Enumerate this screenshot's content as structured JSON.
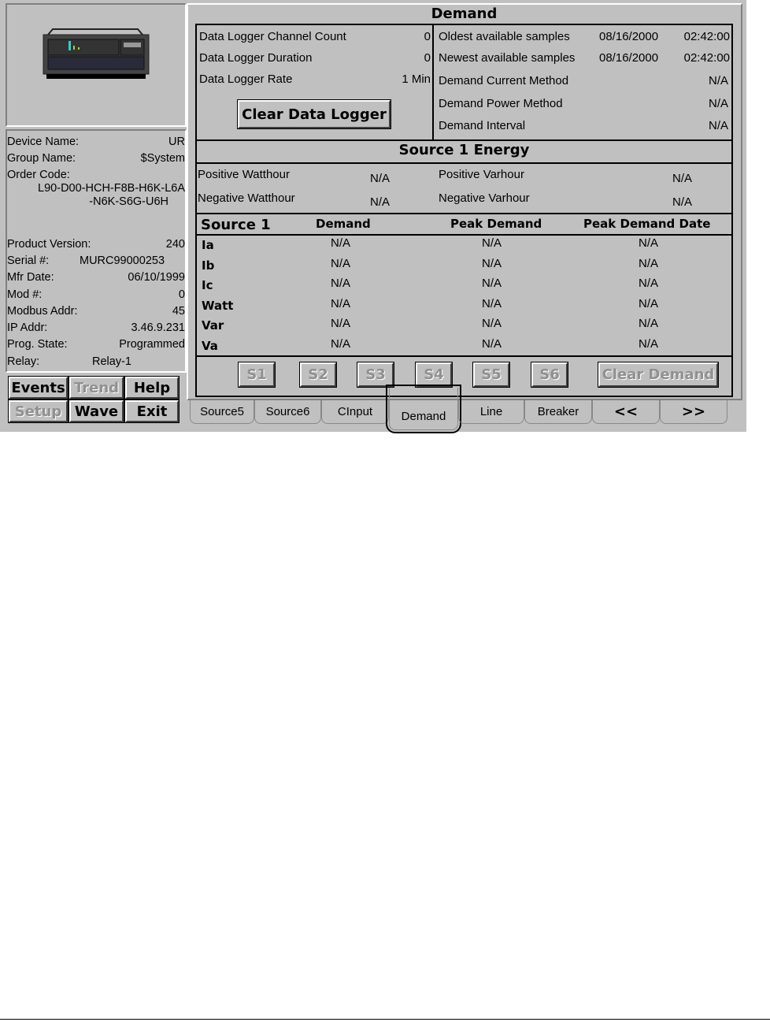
{
  "device": {
    "image_icon": "relay-device-icon",
    "fields": [
      {
        "label": "Device Name:",
        "value": "UR"
      },
      {
        "label": "Group Name:",
        "value": "$System"
      },
      {
        "label": "Order Code:",
        "value": "L90-D00-HCH-F8B-H6K-L6A",
        "value2": "-N6K-S6G-U6H"
      },
      {
        "label": "Product Version:",
        "value": "240"
      },
      {
        "label": "Serial #:",
        "value": "MURC99000253"
      },
      {
        "label": "Mfr Date:",
        "value": "06/10/1999"
      },
      {
        "label": "Mod #:",
        "value": "0"
      },
      {
        "label": "Modbus Addr:",
        "value": "45"
      },
      {
        "label": "IP Addr:",
        "value": "3.46.9.231"
      },
      {
        "label": "Prog. State:",
        "value": "Programmed"
      },
      {
        "label": "Relay:",
        "value": "Relay-1"
      }
    ]
  },
  "nav_buttons": [
    {
      "label": "Events",
      "enabled": true
    },
    {
      "label": "Trend",
      "enabled": false
    },
    {
      "label": "Help",
      "enabled": true
    },
    {
      "label": "Setup",
      "enabled": false
    },
    {
      "label": "Wave",
      "enabled": true
    },
    {
      "label": "Exit",
      "enabled": true
    }
  ],
  "panel": {
    "title": "Demand",
    "logger": [
      {
        "label": "Data Logger Channel Count",
        "value": "0"
      },
      {
        "label": "Data Logger Duration",
        "value": "0"
      },
      {
        "label": "Data Logger Rate",
        "value": "1 Min"
      }
    ],
    "clear_logger": "Clear Data Logger",
    "samples": [
      {
        "label": "Oldest available samples",
        "date": "08/16/2000",
        "time": "02:42:00"
      },
      {
        "label": "Newest available samples",
        "date": "08/16/2000",
        "time": "02:42:00"
      }
    ],
    "methods": [
      {
        "label": "Demand Current Method",
        "value": "N/A"
      },
      {
        "label": "Demand Power Method",
        "value": "N/A"
      },
      {
        "label": "Demand Interval",
        "value": "N/A"
      }
    ],
    "energy_title": "Source 1 Energy",
    "energy": [
      {
        "label": "Positive Watthour",
        "value": "N/A",
        "label2": "Positive Varhour",
        "value2": "N/A"
      },
      {
        "label": "Negative Watthour",
        "value": "N/A",
        "label2": "Negative Varhour",
        "value2": "N/A"
      }
    ],
    "table_headers": [
      "Source 1",
      "Demand",
      "Peak Demand",
      "Peak Demand Date"
    ],
    "table_rows": [
      [
        "Ia",
        "N/A",
        "N/A",
        "N/A"
      ],
      [
        "Ib",
        "N/A",
        "N/A",
        "N/A"
      ],
      [
        "Ic",
        "N/A",
        "N/A",
        "N/A"
      ],
      [
        "Watt",
        "N/A",
        "N/A",
        "N/A"
      ],
      [
        "Var",
        "N/A",
        "N/A",
        "N/A"
      ],
      [
        "Va",
        "N/A",
        "N/A",
        "N/A"
      ]
    ],
    "source_buttons": [
      "S1",
      "S2",
      "S3",
      "S4",
      "S5",
      "S6"
    ],
    "clear_demand": "Clear Demand"
  },
  "tabs": [
    {
      "label": "Source5"
    },
    {
      "label": "Source6"
    },
    {
      "label": "CInput"
    },
    {
      "label": "Demand",
      "active": true
    },
    {
      "label": "Line"
    },
    {
      "label": "Breaker"
    },
    {
      "label": "<<"
    },
    {
      "label": ">>"
    }
  ]
}
